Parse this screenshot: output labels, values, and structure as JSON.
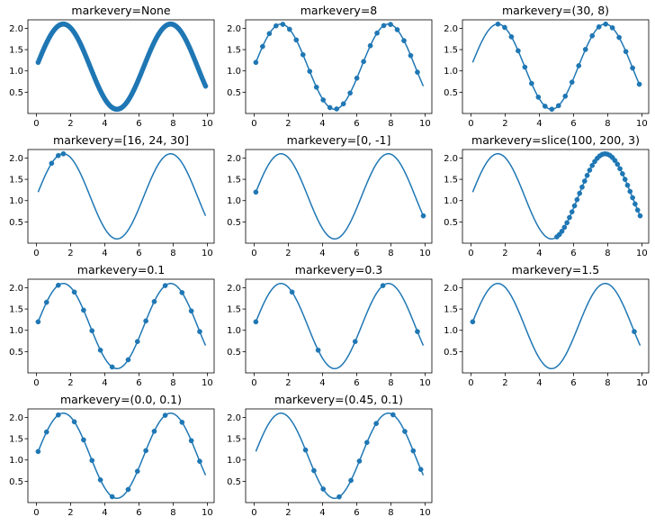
{
  "chart_data": [
    {
      "type": "line",
      "title": "markevery=None",
      "mode": "none",
      "xlim": [
        -0.5,
        10.4
      ],
      "ylim": [
        0.0,
        2.2
      ],
      "x_ticks": [
        0,
        2,
        4,
        6,
        8,
        10
      ],
      "y_ticks": [
        0.5,
        1.0,
        1.5,
        2.0
      ],
      "series": [
        {
          "function": "sin(x)+1.1",
          "x_range": [
            0.1,
            9.9
          ],
          "n_points": 200,
          "marker_indices": "all"
        }
      ],
      "color": "#1f77b4"
    },
    {
      "type": "line",
      "title": "markevery=8",
      "mode": "step",
      "step": 8,
      "xlim": [
        -0.5,
        10.4
      ],
      "ylim": [
        0.0,
        2.2
      ],
      "x_ticks": [
        0,
        2,
        4,
        6,
        8,
        10
      ],
      "y_ticks": [
        0.5,
        1.0,
        1.5,
        2.0
      ],
      "series": [
        {
          "function": "sin(x)+1.1",
          "x_range": [
            0.1,
            9.9
          ],
          "n_points": 200
        }
      ],
      "color": "#1f77b4"
    },
    {
      "type": "line",
      "title": "markevery=(30, 8)",
      "mode": "startstep",
      "start": 30,
      "step": 8,
      "xlim": [
        -0.5,
        10.4
      ],
      "ylim": [
        0.0,
        2.2
      ],
      "x_ticks": [
        0,
        2,
        4,
        6,
        8,
        10
      ],
      "y_ticks": [
        0.5,
        1.0,
        1.5,
        2.0
      ],
      "series": [
        {
          "function": "sin(x)+1.1",
          "x_range": [
            0.1,
            9.9
          ],
          "n_points": 200
        }
      ],
      "color": "#1f77b4"
    },
    {
      "type": "line",
      "title": "markevery=[16, 24, 30]",
      "mode": "list",
      "indices": [
        16,
        24,
        30
      ],
      "xlim": [
        -0.5,
        10.4
      ],
      "ylim": [
        0.0,
        2.2
      ],
      "x_ticks": [
        0,
        2,
        4,
        6,
        8,
        10
      ],
      "y_ticks": [
        0.5,
        1.0,
        1.5,
        2.0
      ],
      "series": [
        {
          "function": "sin(x)+1.1",
          "x_range": [
            0.1,
            9.9
          ],
          "n_points": 200
        }
      ],
      "color": "#1f77b4"
    },
    {
      "type": "line",
      "title": "markevery=[0, -1]",
      "mode": "list",
      "indices": [
        0,
        199
      ],
      "xlim": [
        -0.5,
        10.4
      ],
      "ylim": [
        0.0,
        2.2
      ],
      "x_ticks": [
        0,
        2,
        4,
        6,
        8,
        10
      ],
      "y_ticks": [
        0.5,
        1.0,
        1.5,
        2.0
      ],
      "series": [
        {
          "function": "sin(x)+1.1",
          "x_range": [
            0.1,
            9.9
          ],
          "n_points": 200
        }
      ],
      "color": "#1f77b4"
    },
    {
      "type": "line",
      "title": "markevery=slice(100, 200, 3)",
      "mode": "slice",
      "start": 100,
      "stop": 200,
      "step": 3,
      "xlim": [
        -0.5,
        10.4
      ],
      "ylim": [
        0.0,
        2.2
      ],
      "x_ticks": [
        0,
        2,
        4,
        6,
        8,
        10
      ],
      "y_ticks": [
        0.5,
        1.0,
        1.5,
        2.0
      ],
      "series": [
        {
          "function": "sin(x)+1.1",
          "x_range": [
            0.1,
            9.9
          ],
          "n_points": 200
        }
      ],
      "color": "#1f77b4"
    },
    {
      "type": "line",
      "title": "markevery=0.1",
      "mode": "float",
      "start_frac": 0.0,
      "step_frac": 0.1,
      "xlim": [
        -0.5,
        10.4
      ],
      "ylim": [
        0.0,
        2.2
      ],
      "x_ticks": [
        0,
        2,
        4,
        6,
        8,
        10
      ],
      "y_ticks": [
        0.5,
        1.0,
        1.5,
        2.0
      ],
      "series": [
        {
          "function": "sin(x)+1.1",
          "x_range": [
            0.1,
            9.9
          ],
          "n_points": 200
        }
      ],
      "color": "#1f77b4"
    },
    {
      "type": "line",
      "title": "markevery=0.3",
      "mode": "float",
      "start_frac": 0.0,
      "step_frac": 0.3,
      "xlim": [
        -0.5,
        10.4
      ],
      "ylim": [
        0.0,
        2.2
      ],
      "x_ticks": [
        0,
        2,
        4,
        6,
        8,
        10
      ],
      "y_ticks": [
        0.5,
        1.0,
        1.5,
        2.0
      ],
      "series": [
        {
          "function": "sin(x)+1.1",
          "x_range": [
            0.1,
            9.9
          ],
          "n_points": 200
        }
      ],
      "color": "#1f77b4"
    },
    {
      "type": "line",
      "title": "markevery=1.5",
      "mode": "float",
      "start_frac": 0.0,
      "step_frac": 1.5,
      "xlim": [
        -0.5,
        10.4
      ],
      "ylim": [
        0.0,
        2.2
      ],
      "x_ticks": [
        0,
        2,
        4,
        6,
        8,
        10
      ],
      "y_ticks": [
        0.5,
        1.0,
        1.5,
        2.0
      ],
      "series": [
        {
          "function": "sin(x)+1.1",
          "x_range": [
            0.1,
            9.9
          ],
          "n_points": 200
        }
      ],
      "color": "#1f77b4"
    },
    {
      "type": "line",
      "title": "markevery=(0.0, 0.1)",
      "mode": "float",
      "start_frac": 0.0,
      "step_frac": 0.1,
      "xlim": [
        -0.5,
        10.4
      ],
      "ylim": [
        0.0,
        2.2
      ],
      "x_ticks": [
        0,
        2,
        4,
        6,
        8,
        10
      ],
      "y_ticks": [
        0.5,
        1.0,
        1.5,
        2.0
      ],
      "series": [
        {
          "function": "sin(x)+1.1",
          "x_range": [
            0.1,
            9.9
          ],
          "n_points": 200
        }
      ],
      "color": "#1f77b4"
    },
    {
      "type": "line",
      "title": "markevery=(0.45, 0.1)",
      "mode": "float",
      "start_frac": 0.45,
      "step_frac": 0.1,
      "xlim": [
        -0.5,
        10.4
      ],
      "ylim": [
        0.0,
        2.2
      ],
      "x_ticks": [
        0,
        2,
        4,
        6,
        8,
        10
      ],
      "y_ticks": [
        0.5,
        1.0,
        1.5,
        2.0
      ],
      "series": [
        {
          "function": "sin(x)+1.1",
          "x_range": [
            0.1,
            9.9
          ],
          "n_points": 200
        }
      ],
      "color": "#1f77b4"
    }
  ]
}
